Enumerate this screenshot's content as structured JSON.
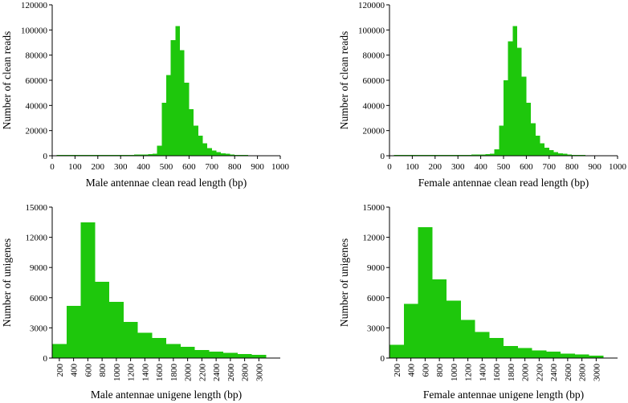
{
  "colors": {
    "bar": "#1ec70c",
    "axis": "#000000",
    "background": "#ffffff"
  },
  "chart_data": [
    {
      "type": "bar",
      "title": "",
      "xlabel": "Male antennae clean read length (bp)",
      "ylabel": "Number of clean reads",
      "x_ticks": [
        0,
        100,
        200,
        300,
        400,
        500,
        600,
        700,
        800,
        900,
        1000
      ],
      "y_ticks": [
        0,
        20000,
        40000,
        60000,
        80000,
        100000,
        120000
      ],
      "xlim": [
        0,
        1000
      ],
      "ylim": [
        0,
        120000
      ],
      "bin_width": 20,
      "bin_starts": [
        0,
        20,
        40,
        60,
        80,
        100,
        120,
        140,
        160,
        180,
        200,
        220,
        240,
        260,
        280,
        300,
        320,
        340,
        360,
        380,
        400,
        420,
        440,
        460,
        480,
        500,
        520,
        540,
        560,
        580,
        600,
        620,
        640,
        660,
        680,
        700,
        720,
        740,
        760,
        780,
        800,
        820,
        840,
        860,
        880,
        900,
        920,
        940,
        960,
        980
      ],
      "values": [
        400,
        500,
        500,
        500,
        500,
        600,
        600,
        600,
        600,
        700,
        700,
        700,
        700,
        700,
        700,
        800,
        800,
        800,
        900,
        900,
        1000,
        1200,
        1500,
        8000,
        42000,
        64000,
        92000,
        103000,
        84000,
        58000,
        37000,
        24000,
        16000,
        10000,
        6000,
        4000,
        3000,
        2000,
        1500,
        1000,
        800,
        600,
        500,
        400,
        300,
        300,
        200,
        200,
        150,
        100
      ]
    },
    {
      "type": "bar",
      "title": "",
      "xlabel": "Female antennae clean read length (bp)",
      "ylabel": "Number of clean reads",
      "x_ticks": [
        0,
        100,
        200,
        300,
        400,
        500,
        600,
        700,
        800,
        900,
        1000
      ],
      "y_ticks": [
        0,
        20000,
        40000,
        60000,
        80000,
        100000,
        120000
      ],
      "xlim": [
        0,
        1000
      ],
      "ylim": [
        0,
        120000
      ],
      "bin_width": 20,
      "bin_starts": [
        0,
        20,
        40,
        60,
        80,
        100,
        120,
        140,
        160,
        180,
        200,
        220,
        240,
        260,
        280,
        300,
        320,
        340,
        360,
        380,
        400,
        420,
        440,
        460,
        480,
        500,
        520,
        540,
        560,
        580,
        600,
        620,
        640,
        660,
        680,
        700,
        720,
        740,
        760,
        780,
        800,
        820,
        840,
        860,
        880,
        900,
        920,
        940,
        960,
        980
      ],
      "values": [
        400,
        500,
        500,
        500,
        500,
        600,
        600,
        600,
        600,
        700,
        700,
        700,
        700,
        700,
        700,
        800,
        800,
        800,
        900,
        900,
        1000,
        1200,
        1500,
        5000,
        24000,
        60000,
        91000,
        103000,
        86000,
        63000,
        42000,
        26000,
        16000,
        10000,
        6500,
        4500,
        3000,
        2000,
        1500,
        1000,
        800,
        600,
        500,
        400,
        300,
        300,
        200,
        200,
        150,
        100
      ]
    },
    {
      "type": "bar",
      "title": "",
      "xlabel": "Male antennae unigene length (bp)",
      "ylabel": "Number of unigenes",
      "x_ticks": [
        200,
        400,
        600,
        800,
        1000,
        1200,
        1400,
        1600,
        1800,
        2000,
        2200,
        2400,
        2600,
        2800,
        3000
      ],
      "y_ticks": [
        0,
        3000,
        6000,
        9000,
        12000,
        15000
      ],
      "xlim": [
        100,
        3300
      ],
      "ylim": [
        0,
        15000
      ],
      "bin_width": 200,
      "bin_starts": [
        100,
        300,
        500,
        700,
        900,
        1100,
        1300,
        1500,
        1700,
        1900,
        2100,
        2300,
        2500,
        2700,
        2900
      ],
      "values": [
        1400,
        5200,
        13500,
        7600,
        5600,
        3600,
        2500,
        2000,
        1400,
        1100,
        800,
        650,
        500,
        400,
        300
      ]
    },
    {
      "type": "bar",
      "title": "",
      "xlabel": "Female antennae unigene length (bp)",
      "ylabel": "Number of unigenes",
      "x_ticks": [
        200,
        400,
        600,
        800,
        1000,
        1200,
        1400,
        1600,
        1800,
        2000,
        2200,
        2400,
        2600,
        2800,
        3000
      ],
      "y_ticks": [
        0,
        3000,
        6000,
        9000,
        12000,
        15000
      ],
      "xlim": [
        100,
        3300
      ],
      "ylim": [
        0,
        15000
      ],
      "bin_width": 200,
      "bin_starts": [
        100,
        300,
        500,
        700,
        900,
        1100,
        1300,
        1500,
        1700,
        1900,
        2100,
        2300,
        2500,
        2700,
        2900
      ],
      "values": [
        1300,
        5400,
        13000,
        7800,
        5700,
        3800,
        2600,
        2000,
        1200,
        1000,
        750,
        650,
        450,
        350,
        250
      ]
    }
  ]
}
